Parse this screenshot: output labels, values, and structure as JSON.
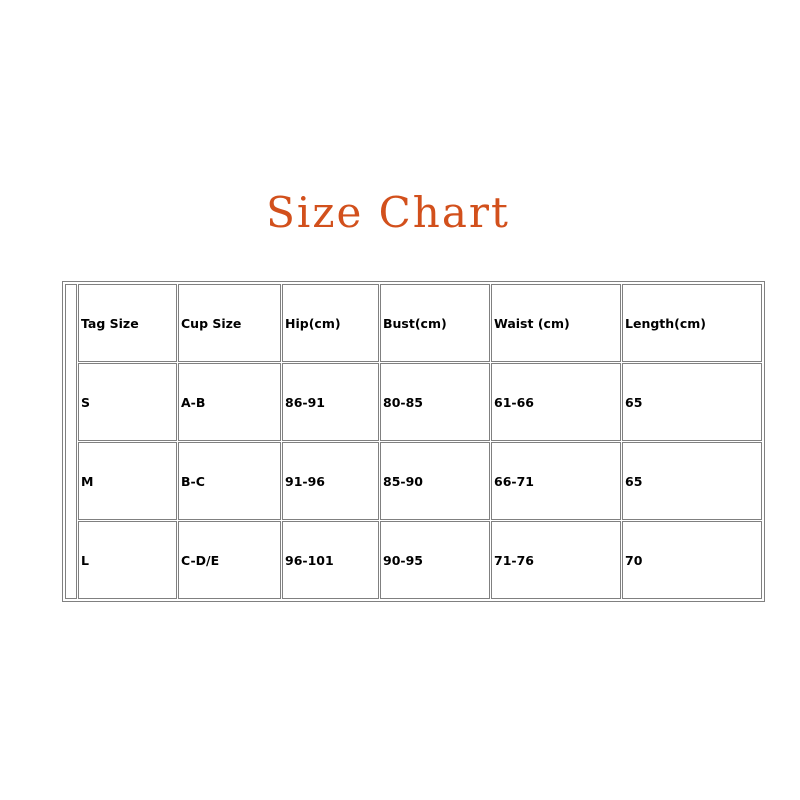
{
  "title": "Size Chart",
  "colors": {
    "title": "#d2501c"
  },
  "table": {
    "headers": [
      "Tag Size",
      "Cup Size",
      "Hip(cm)",
      "Bust(cm)",
      "Waist (cm)",
      "Length(cm)"
    ],
    "rows": [
      [
        "S",
        "A-B",
        "86-91",
        "80-85",
        "61-66",
        "65"
      ],
      [
        "M",
        "B-C",
        "91-96",
        "85-90",
        "66-71",
        "65"
      ],
      [
        "L",
        "C-D/E",
        "96-101",
        "90-95",
        "71-76",
        "70"
      ]
    ]
  }
}
